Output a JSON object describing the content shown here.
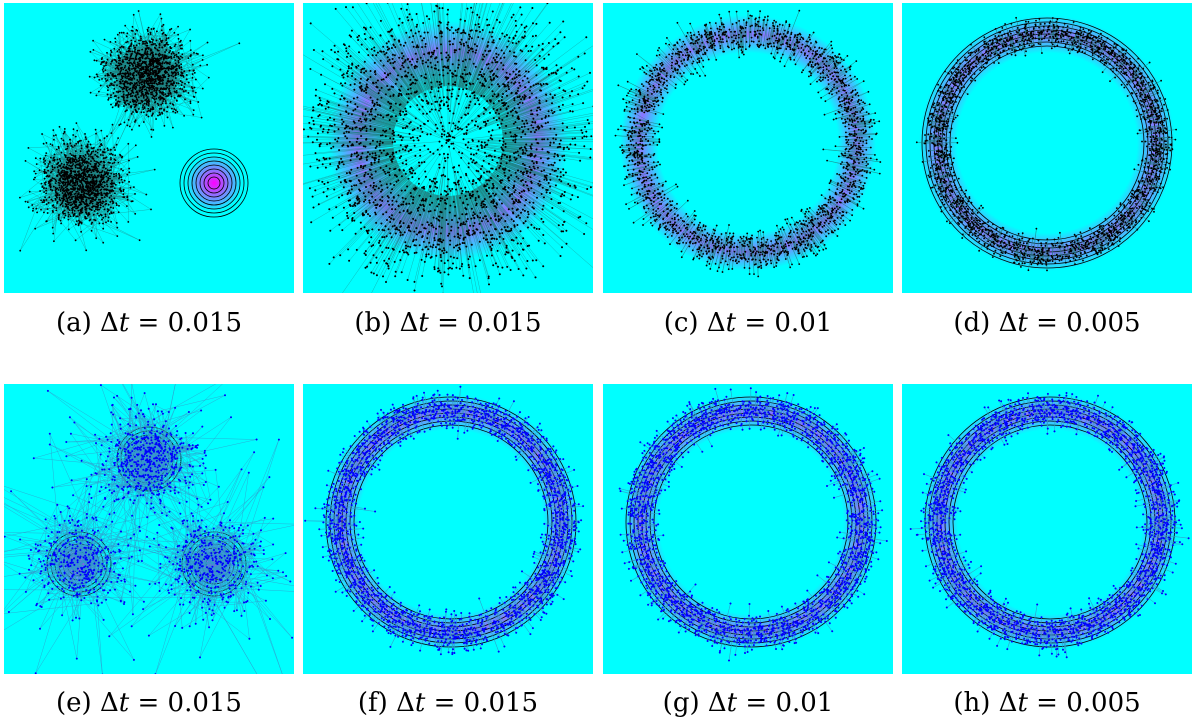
{
  "colors": {
    "background": "#00ffff",
    "samples_top": "#000000",
    "samples_bottom": "#0000ff",
    "edges_top": "#208080",
    "edges_bottom": "#3399cc",
    "density_peak": "#ff00ff",
    "contour": "#000000"
  },
  "panels": [
    {
      "label": "(a)",
      "dt": "0.015",
      "target": "three-gaussians",
      "sampler_row": "top"
    },
    {
      "label": "(b)",
      "dt": "0.015",
      "target": "ring",
      "sampler_row": "top"
    },
    {
      "label": "(c)",
      "dt": "0.01",
      "target": "ring",
      "sampler_row": "top"
    },
    {
      "label": "(d)",
      "dt": "0.005",
      "target": "ring",
      "sampler_row": "top"
    },
    {
      "label": "(e)",
      "dt": "0.015",
      "target": "three-gaussians",
      "sampler_row": "bottom"
    },
    {
      "label": "(f)",
      "dt": "0.015",
      "target": "ring",
      "sampler_row": "bottom"
    },
    {
      "label": "(g)",
      "dt": "0.01",
      "target": "ring",
      "sampler_row": "bottom"
    },
    {
      "label": "(h)",
      "dt": "0.005",
      "target": "ring",
      "sampler_row": "bottom"
    }
  ]
}
